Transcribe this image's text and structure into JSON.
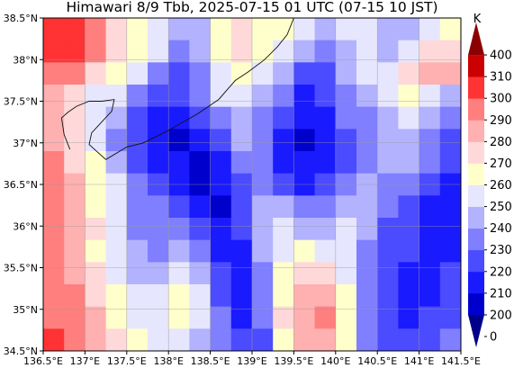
{
  "title": "Himawari 8/9 Tbb, 2025-07-15 01 UTC (07-15 10 JST)",
  "map": {
    "lon_range": [
      136.5,
      141.5
    ],
    "lat_range": [
      34.5,
      38.5
    ],
    "grid": true,
    "lon_ticks": [
      136.5,
      137.0,
      137.5,
      138.0,
      138.5,
      139.0,
      139.5,
      140.0,
      140.5,
      141.0,
      141.5
    ],
    "lon_tick_labels": [
      "136.5°E",
      "137°E",
      "137.5°E",
      "138°E",
      "138.5°E",
      "139°E",
      "139.5°E",
      "140°E",
      "140.5°E",
      "141°E",
      "141.5°E"
    ],
    "lat_ticks": [
      34.5,
      35.0,
      35.5,
      36.0,
      36.5,
      37.0,
      37.5,
      38.0,
      38.5
    ],
    "lat_tick_labels": [
      "34.5°N",
      "35°N",
      "35.5°N",
      "36°N",
      "36.5°N",
      "37°N",
      "37.5°N",
      "38°N",
      "38.5°N"
    ],
    "field": {
      "variable": "brightness temperature",
      "unit": "K",
      "rows": [
        [
          300,
          300,
          295,
          270,
          265,
          255,
          240,
          245,
          265,
          270,
          265,
          260,
          250,
          245,
          250,
          255,
          240,
          245,
          250,
          265
        ],
        [
          300,
          300,
          290,
          275,
          265,
          250,
          235,
          240,
          260,
          270,
          265,
          255,
          240,
          235,
          245,
          250,
          240,
          255,
          270,
          275
        ],
        [
          295,
          290,
          275,
          260,
          250,
          235,
          225,
          235,
          255,
          265,
          255,
          245,
          225,
          225,
          240,
          250,
          255,
          270,
          280,
          280
        ],
        [
          280,
          270,
          255,
          250,
          235,
          225,
          220,
          230,
          250,
          255,
          240,
          230,
          215,
          220,
          235,
          245,
          250,
          265,
          255,
          245
        ],
        [
          285,
          275,
          250,
          240,
          225,
          215,
          210,
          220,
          235,
          245,
          230,
          220,
          210,
          215,
          230,
          235,
          245,
          250,
          240,
          230
        ],
        [
          285,
          270,
          250,
          235,
          220,
          215,
          205,
          210,
          225,
          240,
          230,
          215,
          205,
          210,
          220,
          230,
          240,
          245,
          235,
          225
        ],
        [
          290,
          275,
          260,
          240,
          220,
          215,
          210,
          205,
          215,
          235,
          230,
          215,
          210,
          215,
          225,
          235,
          245,
          240,
          230,
          220
        ],
        [
          290,
          280,
          265,
          250,
          230,
          220,
          215,
          205,
          210,
          225,
          235,
          225,
          215,
          220,
          230,
          240,
          235,
          230,
          220,
          215
        ],
        [
          295,
          285,
          265,
          250,
          235,
          230,
          225,
          210,
          205,
          220,
          240,
          245,
          235,
          235,
          240,
          245,
          230,
          225,
          215,
          215
        ],
        [
          295,
          285,
          270,
          250,
          235,
          230,
          235,
          220,
          210,
          220,
          245,
          250,
          245,
          245,
          250,
          240,
          225,
          220,
          215,
          215
        ],
        [
          290,
          280,
          265,
          250,
          240,
          235,
          245,
          230,
          215,
          215,
          240,
          255,
          260,
          255,
          250,
          235,
          225,
          220,
          215,
          215
        ],
        [
          295,
          285,
          270,
          255,
          245,
          245,
          255,
          240,
          220,
          210,
          235,
          260,
          275,
          270,
          255,
          235,
          220,
          215,
          215,
          220
        ],
        [
          295,
          290,
          275,
          260,
          250,
          250,
          260,
          250,
          225,
          210,
          230,
          265,
          280,
          285,
          260,
          230,
          220,
          215,
          215,
          220
        ],
        [
          295,
          290,
          280,
          265,
          255,
          255,
          265,
          250,
          230,
          215,
          230,
          270,
          285,
          290,
          265,
          235,
          220,
          215,
          220,
          225
        ],
        [
          300,
          290,
          280,
          270,
          260,
          255,
          255,
          245,
          230,
          220,
          225,
          260,
          280,
          285,
          265,
          235,
          225,
          220,
          225,
          230
        ]
      ]
    },
    "coastline_lonlat": [
      [
        136.82,
        36.92
      ],
      [
        136.75,
        37.1
      ],
      [
        136.72,
        37.3
      ],
      [
        136.8,
        37.37
      ],
      [
        136.9,
        37.44
      ],
      [
        137.05,
        37.5
      ],
      [
        137.2,
        37.5
      ],
      [
        137.35,
        37.52
      ],
      [
        137.32,
        37.38
      ],
      [
        137.2,
        37.25
      ],
      [
        137.08,
        37.12
      ],
      [
        137.05,
        36.98
      ],
      [
        137.25,
        36.8
      ],
      [
        137.5,
        36.95
      ],
      [
        137.7,
        37.0
      ],
      [
        138.0,
        37.15
      ],
      [
        138.35,
        37.35
      ],
      [
        138.6,
        37.52
      ],
      [
        138.8,
        37.75
      ],
      [
        138.95,
        37.85
      ],
      [
        139.15,
        38.0
      ],
      [
        139.3,
        38.15
      ],
      [
        139.42,
        38.3
      ],
      [
        139.5,
        38.5
      ]
    ],
    "colorbar": {
      "label": "K",
      "levels": [
        0,
        200,
        210,
        220,
        230,
        240,
        250,
        260,
        270,
        280,
        290,
        300,
        310,
        400
      ],
      "tick_labels": [
        "0",
        "200",
        "210",
        "220",
        "230",
        "240",
        "250",
        "260",
        "270",
        "280",
        "290",
        "300",
        "310",
        "400"
      ],
      "colors": [
        "#00008b",
        "#0000cd",
        "#1a1aff",
        "#4b4bff",
        "#7f7fff",
        "#b2b2ff",
        "#e6e6ff",
        "#ffffcc",
        "#ffd9d9",
        "#ffb0b0",
        "#ff7f7f",
        "#ff3333",
        "#cc0000",
        "#8b0000"
      ],
      "extend": "both"
    }
  }
}
